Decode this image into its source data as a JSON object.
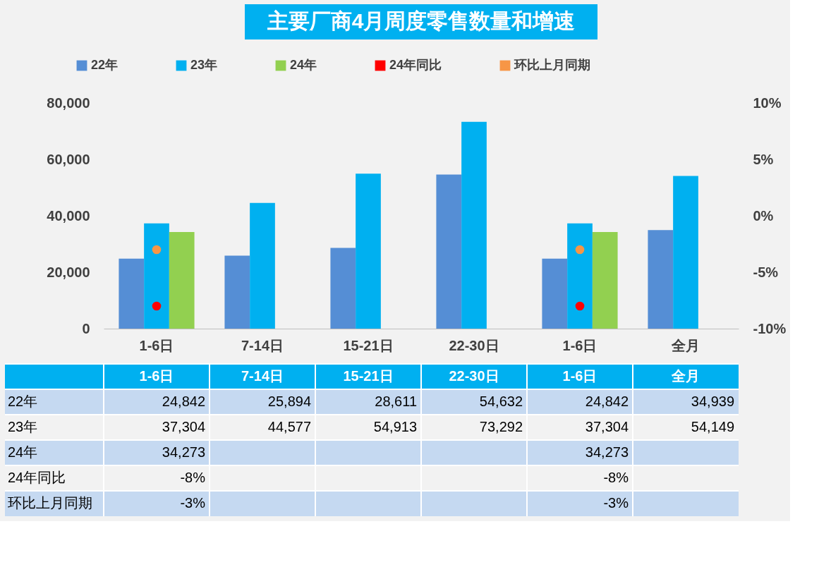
{
  "chart_data": {
    "type": "bar",
    "title": "主要厂商4月周度零售数量和增速",
    "categories": [
      "1-6日",
      "7-14日",
      "15-21日",
      "22-30日",
      "1-6日",
      "全月"
    ],
    "series": [
      {
        "name": "22年",
        "color": "#558ed5",
        "values": [
          24842,
          25894,
          28611,
          54632,
          24842,
          34939
        ],
        "value_labels": [
          "24,842",
          "25,894",
          "28,611",
          "54,632",
          "24,842",
          "34,939"
        ]
      },
      {
        "name": "23年",
        "color": "#00b0f0",
        "values": [
          37304,
          44577,
          54913,
          73292,
          37304,
          54149
        ],
        "value_labels": [
          "37,304",
          "44,577",
          "54,913",
          "73,292",
          "37,304",
          "54,149"
        ]
      },
      {
        "name": "24年",
        "color": "#92d050",
        "values": [
          34273,
          null,
          null,
          null,
          34273,
          null
        ],
        "value_labels": [
          "34,273",
          null,
          null,
          null,
          "34,273",
          null
        ]
      },
      {
        "name": "24年同比",
        "type": "scatter",
        "axis": "y2",
        "color": "#ff0000",
        "values": [
          -8,
          null,
          null,
          null,
          -8,
          null
        ],
        "value_labels": [
          "-8%",
          null,
          null,
          null,
          "-8%",
          null
        ]
      },
      {
        "name": "环比上月同期",
        "type": "scatter",
        "axis": "y2",
        "color": "#f79646",
        "values": [
          -3,
          null,
          null,
          null,
          -3,
          null
        ],
        "value_labels": [
          "-3%",
          null,
          null,
          null,
          "-3%",
          null
        ]
      }
    ],
    "ylim": [
      0,
      80000
    ],
    "yticks": [
      0,
      {
        "value": 20000,
        "label": "20,000"
      },
      {
        "value": 40000,
        "label": "40,000"
      },
      {
        "value": 60000,
        "label": "60,000"
      },
      {
        "value": 80000,
        "label": "80,000"
      }
    ],
    "y2lim": [
      -10,
      10
    ],
    "y2ticks": [
      {
        "value": -10,
        "label": "-10%"
      },
      {
        "value": -5,
        "label": "-5%"
      },
      {
        "value": 0,
        "label": "0%"
      },
      {
        "value": 5,
        "label": "5%"
      },
      {
        "value": 10,
        "label": "10%"
      }
    ],
    "marker": "circle",
    "legend": "top",
    "grid": false
  }
}
